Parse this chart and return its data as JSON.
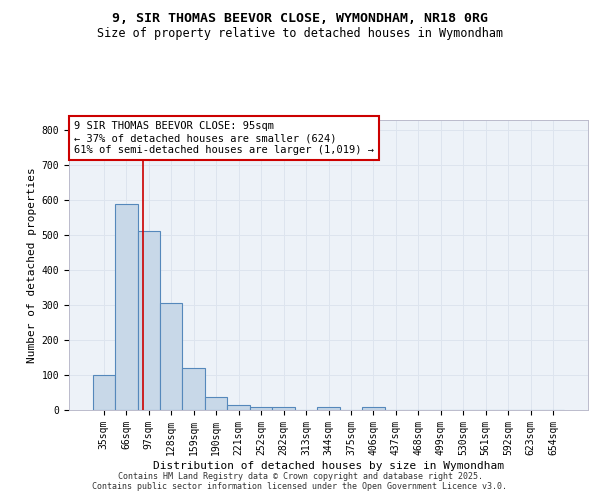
{
  "title1": "9, SIR THOMAS BEEVOR CLOSE, WYMONDHAM, NR18 0RG",
  "title2": "Size of property relative to detached houses in Wymondham",
  "xlabel": "Distribution of detached houses by size in Wymondham",
  "ylabel": "Number of detached properties",
  "bar_color": "#c8d8e8",
  "bar_edge_color": "#5588bb",
  "bar_edge_width": 0.8,
  "categories": [
    "35sqm",
    "66sqm",
    "97sqm",
    "128sqm",
    "159sqm",
    "190sqm",
    "221sqm",
    "252sqm",
    "282sqm",
    "313sqm",
    "344sqm",
    "375sqm",
    "406sqm",
    "437sqm",
    "468sqm",
    "499sqm",
    "530sqm",
    "561sqm",
    "592sqm",
    "623sqm",
    "654sqm"
  ],
  "values": [
    101,
    590,
    511,
    305,
    120,
    36,
    15,
    8,
    8,
    0,
    8,
    0,
    8,
    0,
    0,
    0,
    0,
    0,
    0,
    0,
    0
  ],
  "ylim": [
    0,
    830
  ],
  "yticks": [
    0,
    100,
    200,
    300,
    400,
    500,
    600,
    700,
    800
  ],
  "redline_x": 1.73,
  "annotation_text": "9 SIR THOMAS BEEVOR CLOSE: 95sqm\n← 37% of detached houses are smaller (624)\n61% of semi-detached houses are larger (1,019) →",
  "annotation_box_color": "#ffffff",
  "annotation_box_edge": "#cc0000",
  "footer1": "Contains HM Land Registry data © Crown copyright and database right 2025.",
  "footer2": "Contains public sector information licensed under the Open Government Licence v3.0.",
  "grid_color": "#dde4ee",
  "background_color": "#edf2f8",
  "title_fontsize": 9.5,
  "subtitle_fontsize": 8.5,
  "tick_fontsize": 7,
  "ylabel_fontsize": 8,
  "xlabel_fontsize": 8,
  "annotation_fontsize": 7.5,
  "footer_fontsize": 6
}
